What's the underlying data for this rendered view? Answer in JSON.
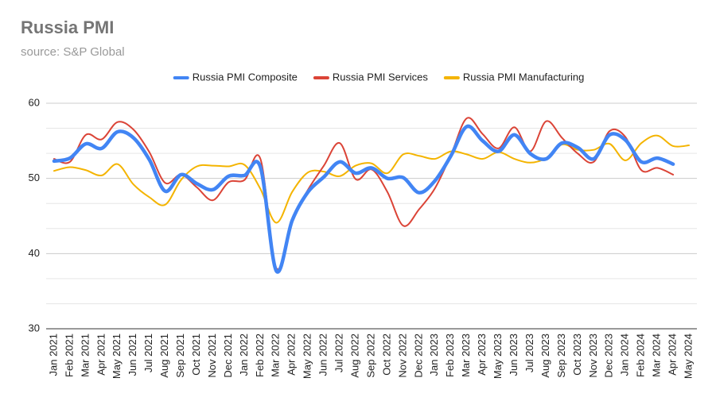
{
  "chart_data": {
    "type": "line",
    "title": "Russia PMI",
    "subtitle": "source: S&P Global",
    "categories": [
      "Jan 2021",
      "Feb 2021",
      "Mar 2021",
      "Apr 2021",
      "May 2021",
      "Jun 2021",
      "Jul 2021",
      "Aug 2021",
      "Sep 2021",
      "Oct 2021",
      "Nov 2021",
      "Dec 2021",
      "Jan 2022",
      "Feb 2022",
      "Mar 2022",
      "Apr 2022",
      "May 2022",
      "Jun 2022",
      "Jul 2022",
      "Aug 2022",
      "Sep 2022",
      "Oct 2022",
      "Nov 2022",
      "Dec 2022",
      "Jan 2023",
      "Feb 2023",
      "Mar 2023",
      "Apr 2023",
      "May 2023",
      "Jun 2023",
      "Jul 2023",
      "Aug 2023",
      "Sep 2023",
      "Oct 2023",
      "Nov 2023",
      "Dec 2023",
      "Jan 2024",
      "Feb 2024",
      "Mar 2024",
      "Apr 2024",
      "May 2024"
    ],
    "series": [
      {
        "name": "Russia PMI Composite",
        "color": "#4285f4",
        "values": [
          52.3,
          52.7,
          54.6,
          54.0,
          56.2,
          55.4,
          52.5,
          48.3,
          50.5,
          49.3,
          48.5,
          50.3,
          50.4,
          51.5,
          37.7,
          44.4,
          48.2,
          50.2,
          52.2,
          50.7,
          51.4,
          50.0,
          50.1,
          48.1,
          49.7,
          53.0,
          56.9,
          55.0,
          53.6,
          55.8,
          53.3,
          52.6,
          54.7,
          54.1,
          52.6,
          55.8,
          55.1,
          52.2,
          52.7,
          51.9,
          null
        ]
      },
      {
        "name": "Russia PMI Services",
        "color": "#db4437",
        "values": [
          52.6,
          52.2,
          55.8,
          55.2,
          57.5,
          56.5,
          53.5,
          49.4,
          50.5,
          48.8,
          47.1,
          49.5,
          49.8,
          52.6,
          38.1,
          44.5,
          48.5,
          51.7,
          54.7,
          49.9,
          51.2,
          48.2,
          43.7,
          45.9,
          48.7,
          53.1,
          58.0,
          55.9,
          54.0,
          56.8,
          53.6,
          57.6,
          55.4,
          53.3,
          52.2,
          56.3,
          55.5,
          51.1,
          51.4,
          50.5,
          null
        ]
      },
      {
        "name": "Russia PMI Manufacturing",
        "color": "#f4b400",
        "values": [
          51.0,
          51.5,
          51.1,
          50.4,
          51.9,
          49.2,
          47.5,
          46.5,
          49.8,
          51.6,
          51.7,
          51.6,
          51.8,
          48.6,
          44.1,
          48.2,
          50.8,
          50.9,
          50.3,
          51.7,
          52.0,
          50.7,
          53.2,
          53.0,
          52.6,
          53.6,
          53.2,
          52.6,
          53.5,
          52.6,
          52.1,
          52.7,
          54.5,
          53.8,
          53.8,
          54.6,
          52.4,
          54.7,
          55.7,
          54.3,
          54.4
        ]
      }
    ],
    "ylim": [
      30,
      60
    ],
    "yticks": [
      30,
      40,
      50,
      60
    ],
    "grid": true,
    "legend": "top"
  }
}
